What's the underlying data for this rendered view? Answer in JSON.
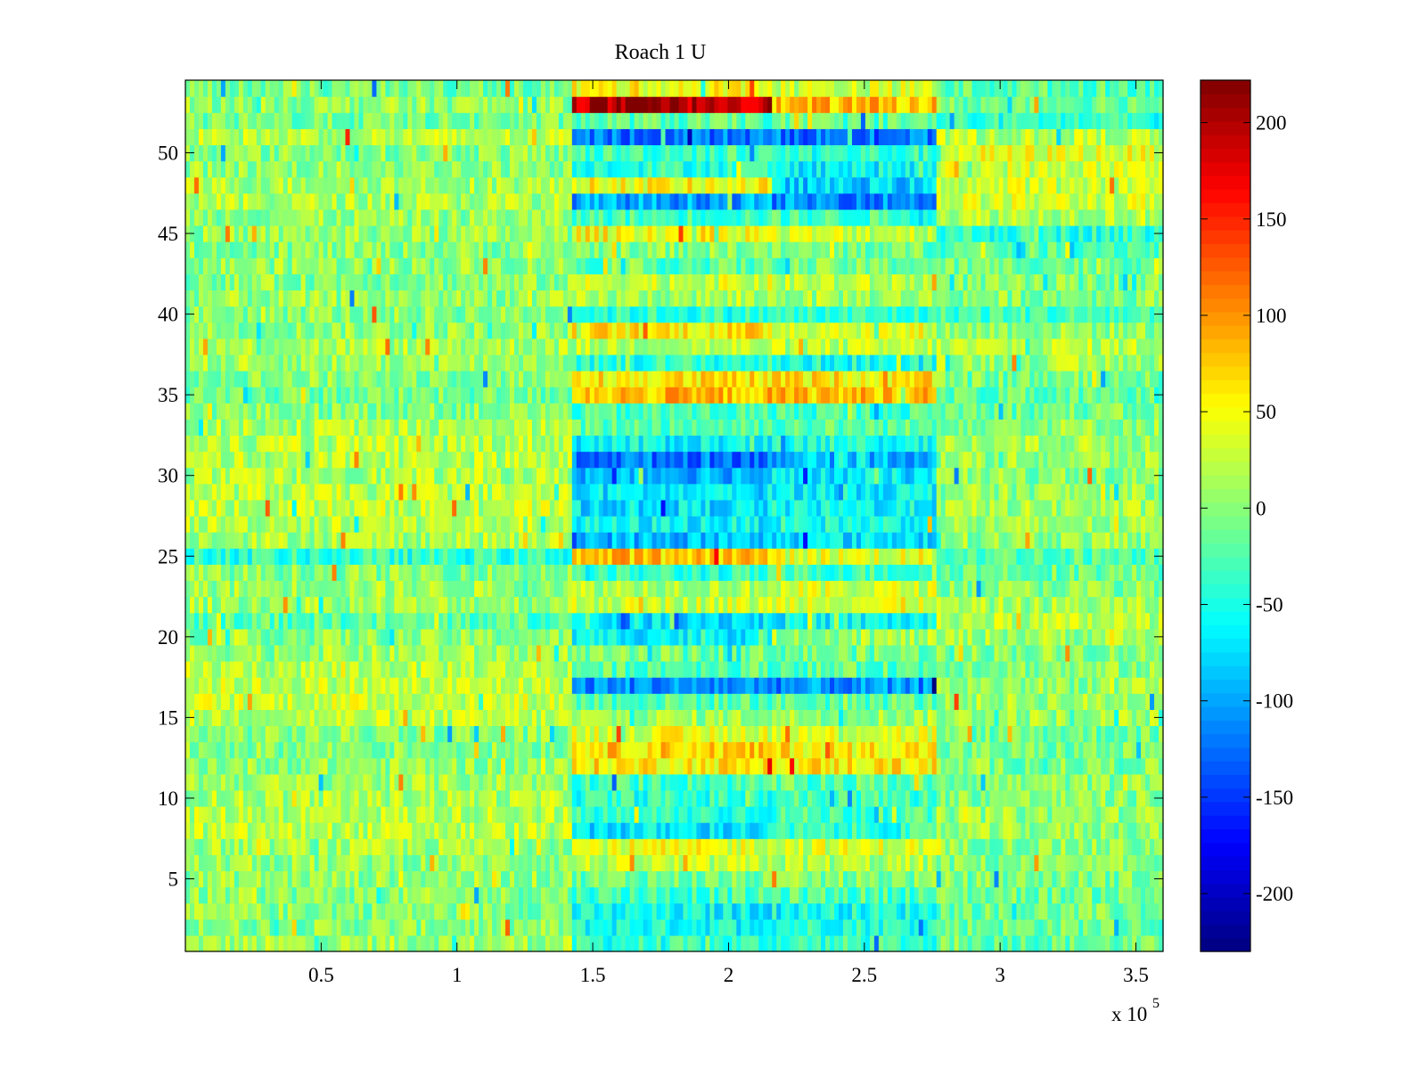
{
  "chart_data": {
    "type": "heatmap",
    "title": "Roach 1 U",
    "xlabel": "",
    "ylabel": "",
    "x_exponent_label": "x 10",
    "x_exponent_power": "5",
    "xlim": [
      0,
      3.6
    ],
    "ylim": [
      0.5,
      54.5
    ],
    "x_ticks": [
      0.5,
      1,
      1.5,
      2,
      2.5,
      3,
      3.5
    ],
    "x_tick_labels": [
      "0.5",
      "1",
      "1.5",
      "2",
      "2.5",
      "3",
      "3.5"
    ],
    "y_ticks": [
      5,
      10,
      15,
      20,
      25,
      30,
      35,
      40,
      45,
      50
    ],
    "y_tick_labels": [
      "5",
      "10",
      "15",
      "20",
      "25",
      "30",
      "35",
      "40",
      "45",
      "50"
    ],
    "colorbar": {
      "colormap": "jet",
      "range": [
        -230,
        222
      ],
      "ticks": [
        200,
        150,
        100,
        50,
        0,
        -50,
        -100,
        -150,
        -200
      ],
      "tick_labels": [
        "200",
        "150",
        "100",
        "50",
        "0",
        "-50",
        "-100",
        "-150",
        "-200"
      ]
    },
    "rows": 54,
    "time_segments_x1e5": [
      [
        0,
        1.42
      ],
      [
        1.42,
        2.15
      ],
      [
        2.15,
        2.75
      ],
      [
        2.75,
        3.6
      ]
    ],
    "row_means_by_segment": {
      "description_of_values": "approximate mean value per row (1..54) in each time segment",
      "1": [
        10,
        -40,
        -35,
        -15
      ],
      "2": [
        0,
        -50,
        -40,
        -10
      ],
      "3": [
        0,
        -60,
        -50,
        -10
      ],
      "4": [
        0,
        -30,
        -25,
        -10
      ],
      "5": [
        5,
        -10,
        -5,
        -5
      ],
      "6": [
        5,
        20,
        15,
        -5
      ],
      "7": [
        10,
        40,
        35,
        0
      ],
      "8": [
        20,
        -70,
        -40,
        5
      ],
      "9": [
        20,
        -40,
        -30,
        5
      ],
      "10": [
        15,
        -40,
        -30,
        0
      ],
      "11": [
        10,
        -30,
        -20,
        0
      ],
      "12": [
        5,
        60,
        60,
        -5
      ],
      "13": [
        0,
        70,
        60,
        -10
      ],
      "14": [
        0,
        40,
        40,
        -10
      ],
      "15": [
        20,
        10,
        10,
        10
      ],
      "16": [
        30,
        -20,
        -20,
        10
      ],
      "17": [
        25,
        -110,
        -110,
        5
      ],
      "18": [
        20,
        -20,
        -20,
        0
      ],
      "19": [
        10,
        -10,
        -10,
        0
      ],
      "20": [
        0,
        -60,
        10,
        10
      ],
      "21": [
        -20,
        -70,
        -60,
        20
      ],
      "22": [
        10,
        30,
        40,
        10
      ],
      "23": [
        10,
        20,
        30,
        0
      ],
      "24": [
        0,
        -40,
        -30,
        -10
      ],
      "25": [
        -40,
        80,
        40,
        -20
      ],
      "26": [
        15,
        -90,
        -70,
        5
      ],
      "27": [
        20,
        -60,
        -50,
        5
      ],
      "28": [
        25,
        -70,
        -60,
        10
      ],
      "29": [
        20,
        -70,
        -60,
        5
      ],
      "30": [
        15,
        -90,
        -70,
        0
      ],
      "31": [
        20,
        -120,
        -90,
        5
      ],
      "32": [
        20,
        -60,
        -50,
        10
      ],
      "33": [
        15,
        -20,
        -20,
        5
      ],
      "34": [
        0,
        -30,
        -30,
        -10
      ],
      "35": [
        -10,
        80,
        80,
        -20
      ],
      "36": [
        0,
        60,
        60,
        -10
      ],
      "37": [
        10,
        -40,
        -50,
        10
      ],
      "38": [
        15,
        20,
        20,
        20
      ],
      "39": [
        5,
        60,
        40,
        5
      ],
      "40": [
        0,
        -40,
        -40,
        -30
      ],
      "41": [
        5,
        10,
        10,
        0
      ],
      "42": [
        0,
        30,
        20,
        -5
      ],
      "43": [
        5,
        -20,
        -10,
        -10
      ],
      "44": [
        0,
        0,
        -10,
        -20
      ],
      "45": [
        5,
        50,
        30,
        -40
      ],
      "46": [
        5,
        -30,
        -30,
        20
      ],
      "47": [
        15,
        -100,
        -110,
        30
      ],
      "48": [
        15,
        50,
        -80,
        30
      ],
      "49": [
        5,
        -40,
        -60,
        30
      ],
      "50": [
        0,
        -30,
        -40,
        40
      ],
      "51": [
        20,
        -120,
        -120,
        20
      ],
      "52": [
        -10,
        -20,
        -20,
        -40
      ],
      "53": [
        5,
        200,
        80,
        -10
      ],
      "54": [
        -10,
        50,
        30,
        -20
      ]
    }
  }
}
